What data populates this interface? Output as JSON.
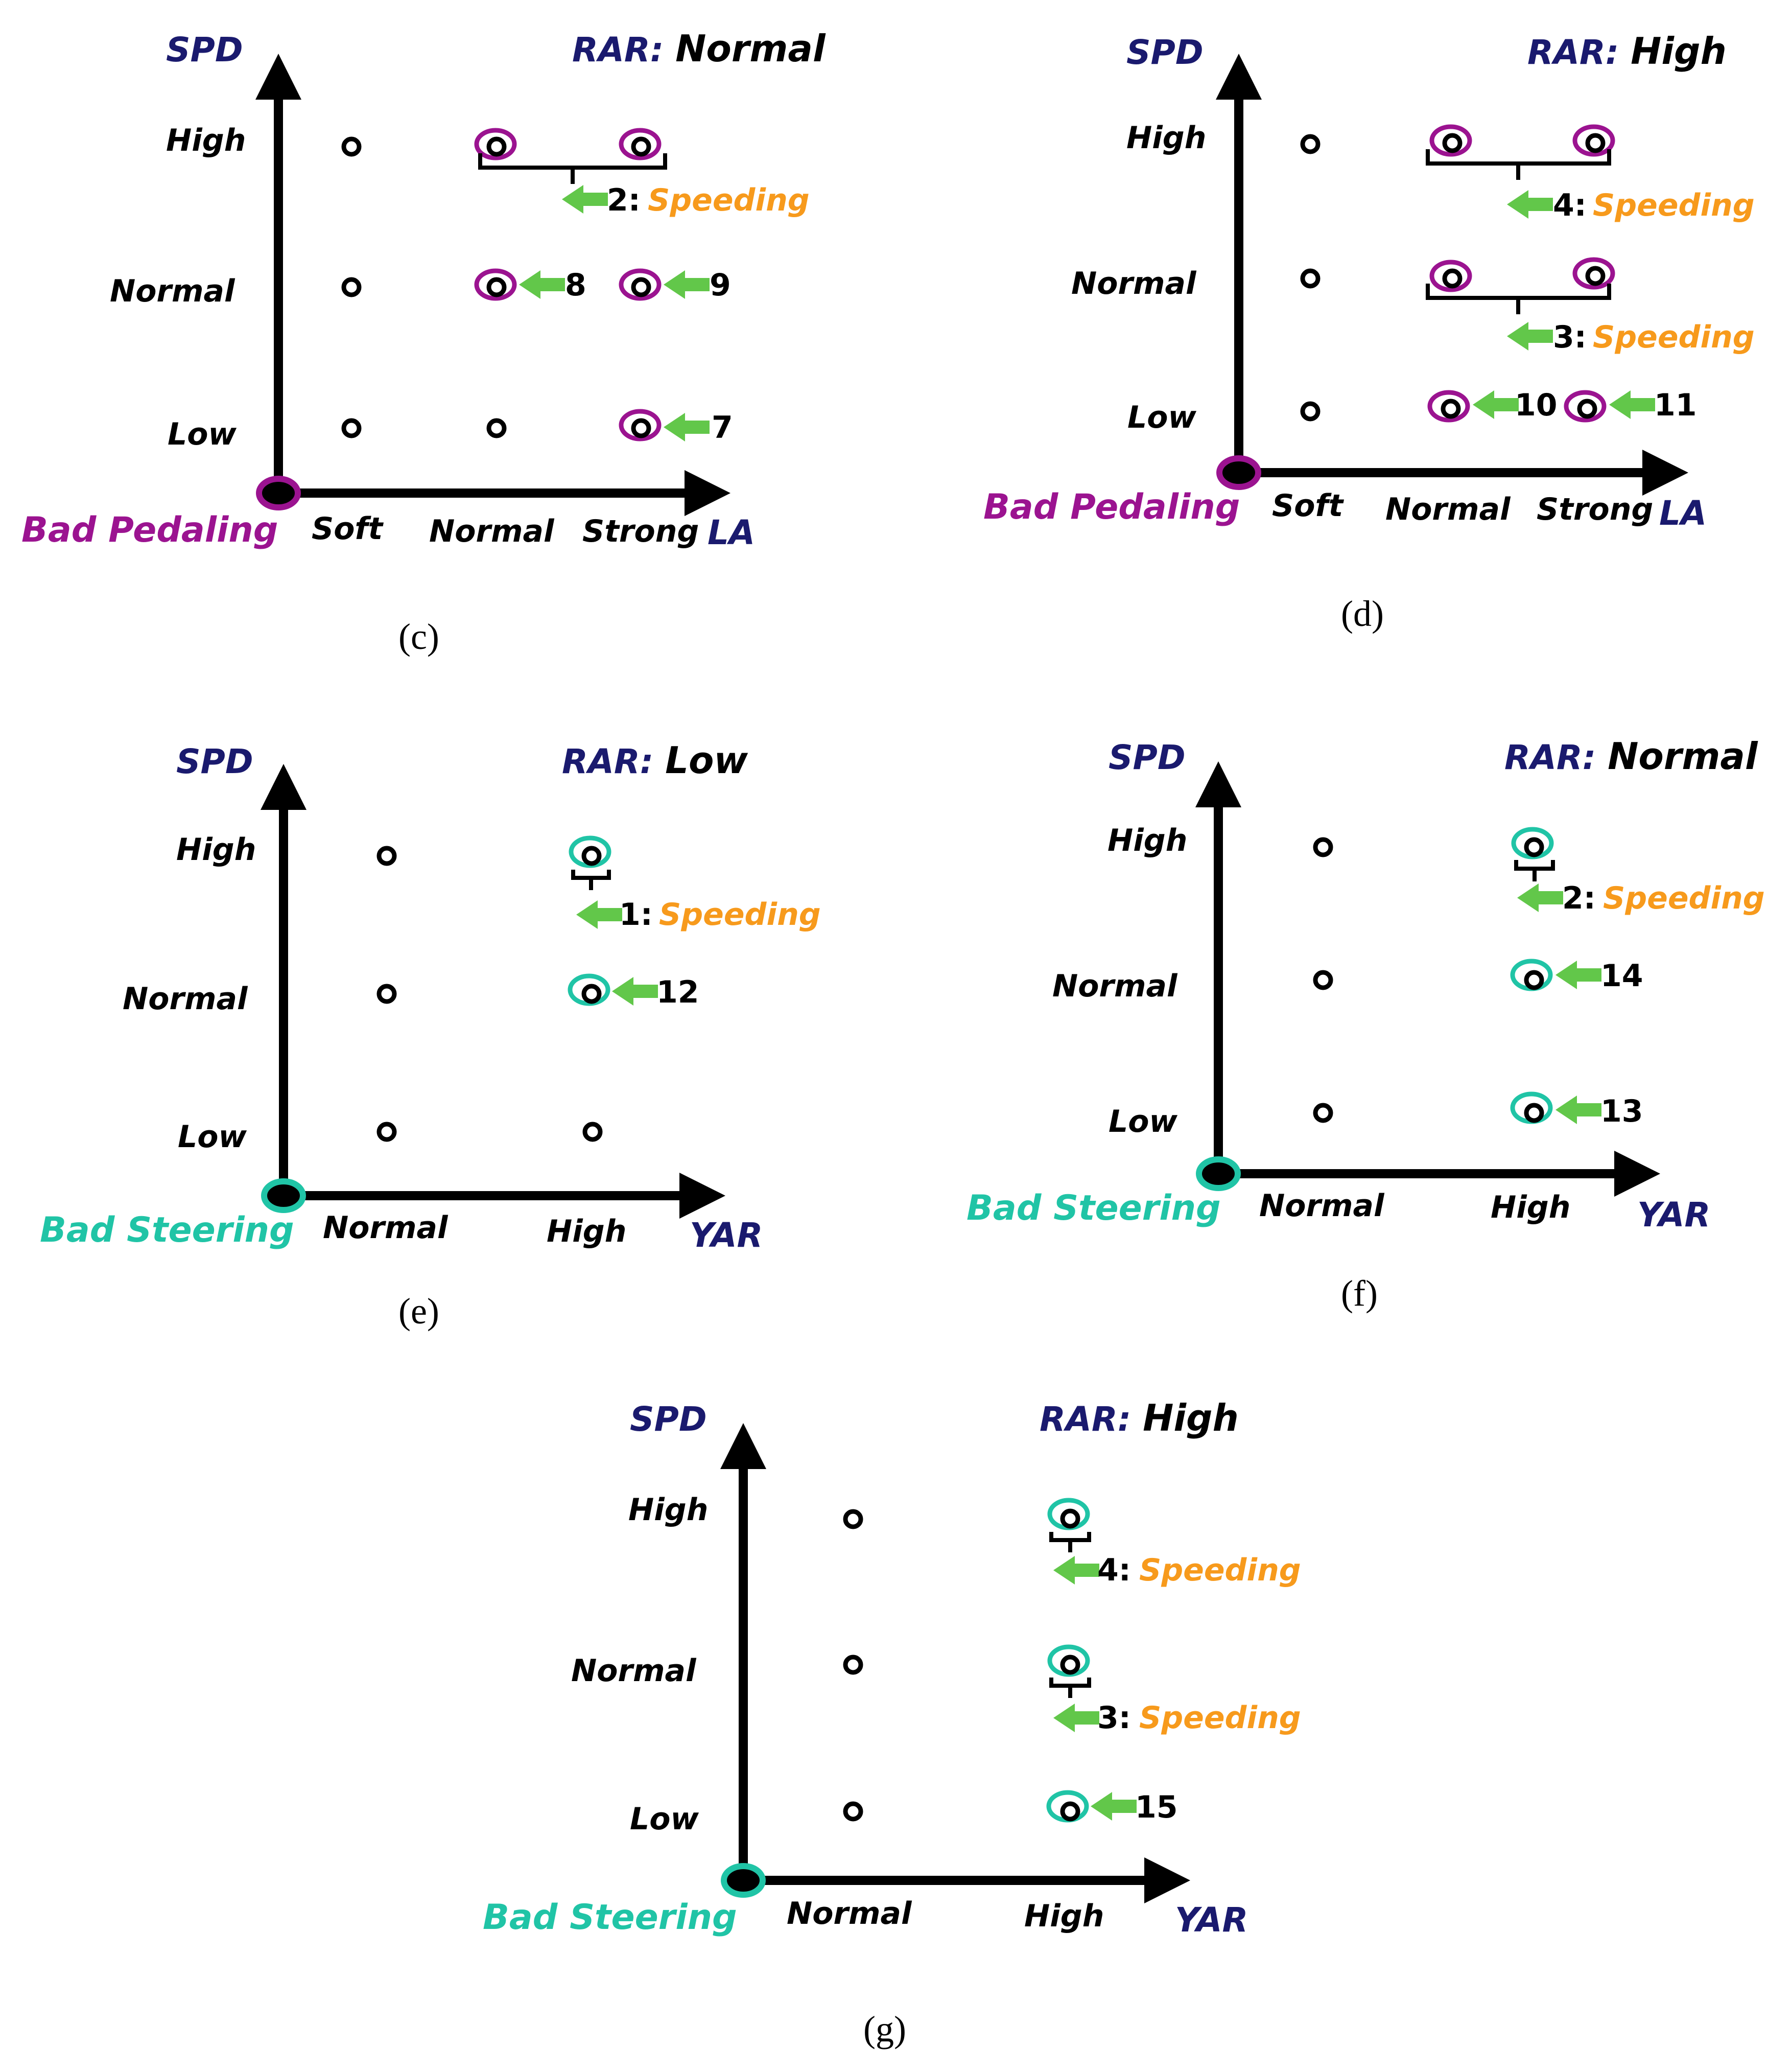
{
  "colors": {
    "axis_label": "#1a1a6e",
    "pedaling": "#9b1390",
    "steering": "#20c4a6",
    "arrow": "#62c74a",
    "speeding": "#f79a1c"
  },
  "common": {
    "y_axis_label": "SPD",
    "rar_prefix": "RAR:",
    "speeding_label": "Speeding"
  },
  "panels": {
    "c": {
      "caption": "(c)",
      "rar_value": "Normal",
      "origin_label": "Bad Pedaling",
      "x_axis_label": "LA",
      "x_ticks": [
        "Soft",
        "Normal",
        "Strong"
      ],
      "y_ticks": [
        "High",
        "Normal",
        "Low"
      ],
      "flags": [
        "8",
        "9",
        "7"
      ],
      "groups": [
        {
          "num": "2:"
        }
      ]
    },
    "d": {
      "caption": "(d)",
      "rar_value": "High",
      "origin_label": "Bad Pedaling",
      "x_axis_label": "LA",
      "x_ticks": [
        "Soft",
        "Normal",
        "Strong"
      ],
      "y_ticks": [
        "High",
        "Normal",
        "Low"
      ],
      "flags": [
        "10",
        "11"
      ],
      "groups": [
        {
          "num": "4:"
        },
        {
          "num": "3:"
        }
      ]
    },
    "e": {
      "caption": "(e)",
      "rar_value": "Low",
      "origin_label": "Bad Steering",
      "x_axis_label": "YAR",
      "x_ticks": [
        "Normal",
        "High"
      ],
      "y_ticks": [
        "High",
        "Normal",
        "Low"
      ],
      "flags": [
        "12"
      ],
      "groups": [
        {
          "num": "1:"
        }
      ]
    },
    "f": {
      "caption": "(f)",
      "rar_value": "Normal",
      "origin_label": "Bad Steering",
      "x_axis_label": "YAR",
      "x_ticks": [
        "Normal",
        "High"
      ],
      "y_ticks": [
        "High",
        "Normal",
        "Low"
      ],
      "flags": [
        "14",
        "13"
      ],
      "groups": [
        {
          "num": "2:"
        }
      ]
    },
    "g": {
      "caption": "(g)",
      "rar_value": "High",
      "origin_label": "Bad Steering",
      "x_axis_label": "YAR",
      "x_ticks": [
        "Normal",
        "High"
      ],
      "y_ticks": [
        "High",
        "Normal",
        "Low"
      ],
      "flags": [
        "15"
      ],
      "groups": [
        {
          "num": "4:"
        },
        {
          "num": "3:"
        }
      ]
    }
  }
}
